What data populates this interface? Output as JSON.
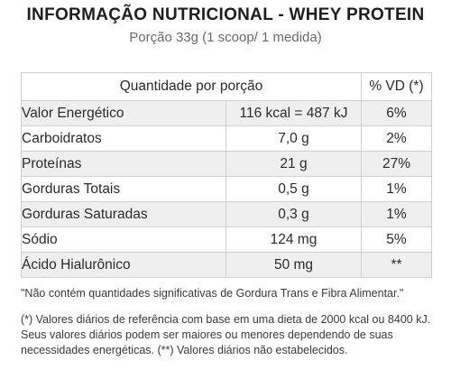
{
  "title": "INFORMAÇÃO NUTRICIONAL - WHEY PROTEIN",
  "subtitle": "Porção 33g (1 scoop/ 1 medida)",
  "table": {
    "headers": {
      "quantity": "Quantidade por porção",
      "vd": "% VD (*)"
    },
    "rows": [
      {
        "name": "Valor Energético",
        "qty": "116 kcal = 487 kJ",
        "vd": "6%"
      },
      {
        "name": "Carboidratos",
        "qty": "7,0 g",
        "vd": "2%"
      },
      {
        "name": "Proteínas",
        "qty": "21 g",
        "vd": "27%"
      },
      {
        "name": "Gorduras Totais",
        "qty": "0,5 g",
        "vd": "1%"
      },
      {
        "name": "Gorduras Saturadas",
        "qty": "0,3 g",
        "vd": "1%"
      },
      {
        "name": "Sódio",
        "qty": "124 mg",
        "vd": "5%"
      },
      {
        "name": "Ácido Hialurônico",
        "qty": "50 mg",
        "vd": "**"
      }
    ]
  },
  "notes": {
    "trans_fat": "\"Não contém quantidades significativas de Gordura Trans e Fibra Alimentar.\"",
    "daily_values": "(*) Valores diários de referência com base em uma dieta de 2000 kcal ou 8400 kJ. Seus valores diários podem ser maiores ou menores dependendo de suas necessidades energéticas. (**) Valores diários não estabelecidos."
  }
}
